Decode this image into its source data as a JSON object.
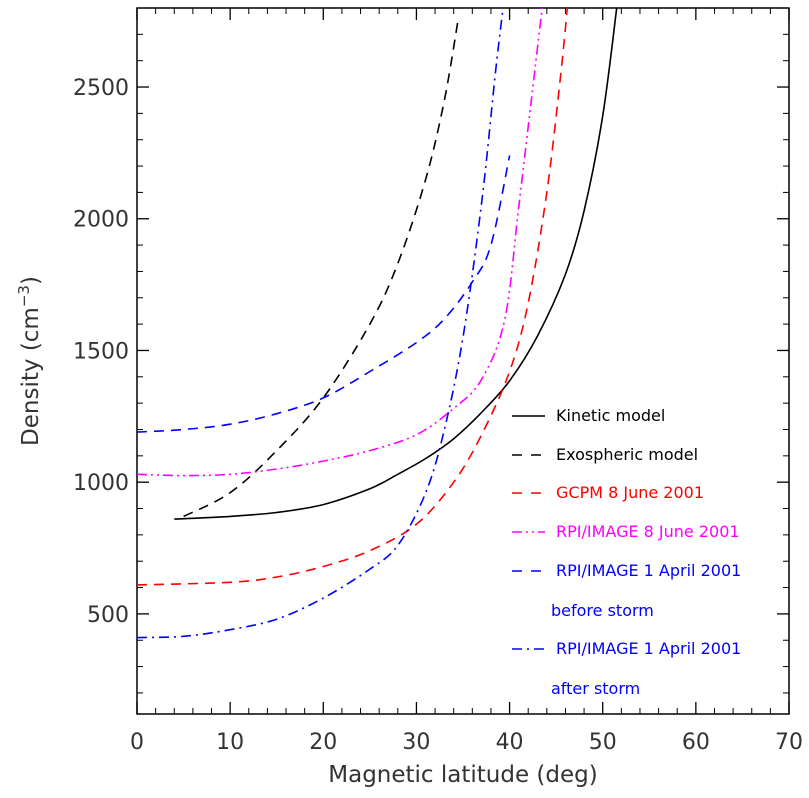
{
  "chart_data": {
    "type": "line",
    "title": "",
    "xlabel": "Magnetic latitude (deg)",
    "ylabel": "Density (cm",
    "ylabel_exp": "−3",
    "ylabel_close": ")",
    "xlim": [
      0,
      70
    ],
    "ylim": [
      120,
      2800
    ],
    "xticks": [
      0,
      10,
      20,
      30,
      40,
      50,
      60,
      70
    ],
    "yticks": [
      500,
      1000,
      1500,
      2000,
      2500
    ],
    "grid": false,
    "legend_position": "bottom-right",
    "series": [
      {
        "name": "Kinetic model",
        "color": "#000000",
        "dash": "solid",
        "points": [
          [
            4,
            860
          ],
          [
            10,
            870
          ],
          [
            15,
            885
          ],
          [
            20,
            915
          ],
          [
            25,
            975
          ],
          [
            28,
            1030
          ],
          [
            31,
            1090
          ],
          [
            34,
            1165
          ],
          [
            37,
            1265
          ],
          [
            40,
            1385
          ],
          [
            43,
            1555
          ],
          [
            46,
            1790
          ],
          [
            48,
            2030
          ],
          [
            50,
            2390
          ],
          [
            51.5,
            2800
          ]
        ]
      },
      {
        "name": "Exospheric model",
        "color": "#000000",
        "dash": "dashed",
        "points": [
          [
            5,
            870
          ],
          [
            10,
            960
          ],
          [
            15,
            1120
          ],
          [
            20,
            1320
          ],
          [
            25,
            1600
          ],
          [
            28,
            1830
          ],
          [
            31,
            2150
          ],
          [
            33,
            2450
          ],
          [
            34.5,
            2760
          ]
        ]
      },
      {
        "name": "GCPM 8 June 2001",
        "color": "#ff0000",
        "dash": "dashed",
        "points": [
          [
            0,
            610
          ],
          [
            10,
            620
          ],
          [
            15,
            640
          ],
          [
            20,
            680
          ],
          [
            25,
            740
          ],
          [
            30,
            840
          ],
          [
            34,
            1000
          ],
          [
            37,
            1180
          ],
          [
            40,
            1420
          ],
          [
            42,
            1680
          ],
          [
            44,
            2100
          ],
          [
            45.5,
            2550
          ],
          [
            46.2,
            2800
          ]
        ]
      },
      {
        "name": "RPI/IMAGE 8 June 2001",
        "color": "#ff00ff",
        "dash": "dashdotdot",
        "points": [
          [
            0,
            1030
          ],
          [
            5,
            1025
          ],
          [
            10,
            1030
          ],
          [
            15,
            1050
          ],
          [
            20,
            1080
          ],
          [
            25,
            1120
          ],
          [
            30,
            1180
          ],
          [
            34,
            1280
          ],
          [
            37,
            1390
          ],
          [
            39.5,
            1620
          ],
          [
            41,
            2050
          ],
          [
            42.5,
            2500
          ],
          [
            43.5,
            2800
          ]
        ]
      },
      {
        "name": "RPI/IMAGE 1 April 2001",
        "color": "#0000ff",
        "dash": "dashed",
        "points": [
          [
            0,
            1190
          ],
          [
            5,
            1200
          ],
          [
            10,
            1220
          ],
          [
            15,
            1260
          ],
          [
            20,
            1320
          ],
          [
            25,
            1420
          ],
          [
            30,
            1530
          ],
          [
            33,
            1620
          ],
          [
            36,
            1760
          ],
          [
            38,
            1900
          ],
          [
            40,
            2240
          ]
        ]
      },
      {
        "name": "RPI/IMAGE 1 April 2001",
        "color": "#0000ff",
        "dash": "dashdot",
        "points": [
          [
            0,
            410
          ],
          [
            5,
            415
          ],
          [
            10,
            440
          ],
          [
            15,
            480
          ],
          [
            20,
            560
          ],
          [
            25,
            670
          ],
          [
            28,
            760
          ],
          [
            31,
            960
          ],
          [
            33,
            1200
          ],
          [
            35,
            1550
          ],
          [
            37,
            2060
          ],
          [
            38.5,
            2560
          ],
          [
            39.3,
            2800
          ]
        ]
      }
    ],
    "legend": [
      {
        "label": "Kinetic model",
        "color": "#000000",
        "dash": "solid",
        "sub": ""
      },
      {
        "label": "Exospheric model",
        "color": "#000000",
        "dash": "dashed",
        "sub": ""
      },
      {
        "label": "GCPM 8 June 2001",
        "color": "#ff0000",
        "dash": "dashed",
        "sub": ""
      },
      {
        "label": "RPI/IMAGE 8 June 2001",
        "color": "#ff00ff",
        "dash": "dashdotdot",
        "sub": ""
      },
      {
        "label": "RPI/IMAGE 1 April 2001",
        "color": "#0000ff",
        "dash": "dashed",
        "sub": "before storm"
      },
      {
        "label": "RPI/IMAGE 1 April 2001",
        "color": "#0000ff",
        "dash": "dashdot",
        "sub": "after storm"
      }
    ]
  }
}
